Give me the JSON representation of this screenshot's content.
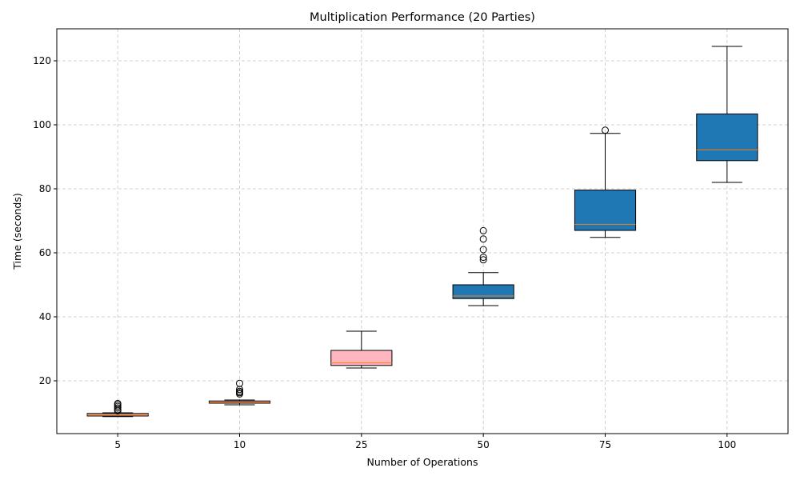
{
  "chart_data": {
    "type": "boxplot",
    "title": "Multiplication Performance (20 Parties)",
    "xlabel": "Number of Operations",
    "ylabel": "Time (seconds)",
    "categories": [
      "5",
      "10",
      "25",
      "50",
      "75",
      "100"
    ],
    "ylim": [
      3.5,
      130
    ],
    "yticks": [
      20,
      40,
      60,
      80,
      100,
      120
    ],
    "grid": true,
    "grid_style": "dashed",
    "boxes": [
      {
        "category": "5",
        "whisker_low": 8.8,
        "q1": 9.0,
        "median": 9.4,
        "q3": 9.8,
        "whisker_high": 10.0,
        "outliers": [
          10.6,
          11.0,
          11.5,
          12.0,
          12.5,
          12.9
        ],
        "color": "#FFB6C1"
      },
      {
        "category": "10",
        "whisker_low": 12.5,
        "q1": 13.0,
        "median": 13.3,
        "q3": 13.7,
        "whisker_high": 14.0,
        "outliers": [
          15.9,
          16.3,
          16.7,
          17.3,
          19.2
        ],
        "color": "#FFB6C1"
      },
      {
        "category": "25",
        "whisker_low": 24.0,
        "q1": 24.8,
        "median": 25.6,
        "q3": 29.5,
        "whisker_high": 35.5,
        "outliers": [],
        "color": "#FFB6C1"
      },
      {
        "category": "50",
        "whisker_low": 43.5,
        "q1": 45.7,
        "median": 46.5,
        "q3": 50.0,
        "whisker_high": 53.8,
        "outliers": [
          57.8,
          58.6,
          61.0,
          64.3,
          66.9
        ],
        "color": "#1f77b4"
      },
      {
        "category": "75",
        "whisker_low": 64.8,
        "q1": 67.0,
        "median": 68.9,
        "q3": 79.6,
        "whisker_high": 97.3,
        "outliers": [
          98.3
        ],
        "color": "#1f77b4"
      },
      {
        "category": "100",
        "whisker_low": 82.0,
        "q1": 88.8,
        "median": 92.2,
        "q3": 103.4,
        "whisker_high": 124.5,
        "outliers": [],
        "color": "#1f77b4"
      }
    ],
    "median_color": "#ff7f0e",
    "grid_color": "#b0b0b0"
  }
}
